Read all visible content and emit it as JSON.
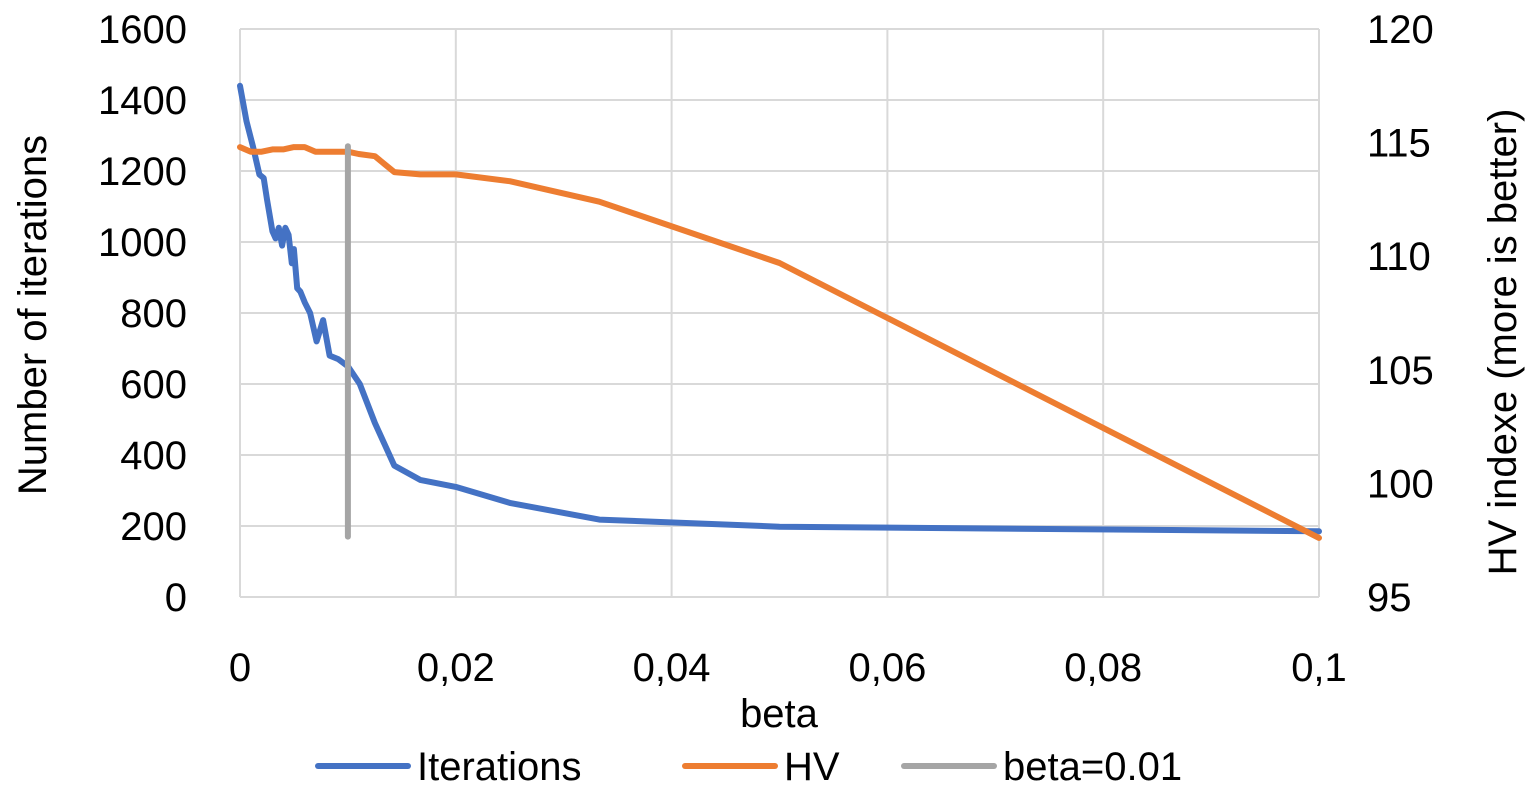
{
  "chart_data": {
    "type": "line",
    "xlabel": "beta",
    "ylabel_left": "Number of iterations",
    "ylabel_right": "HV indexe (more is better)",
    "x_range": [
      0,
      0.1
    ],
    "y_left_range": [
      0,
      1600
    ],
    "y_right_range": [
      95,
      120
    ],
    "grid": true,
    "legend_position": "bottom",
    "x_ticks": [
      {
        "v": 0,
        "label": "0"
      },
      {
        "v": 0.02,
        "label": "0,02"
      },
      {
        "v": 0.04,
        "label": "0,04"
      },
      {
        "v": 0.06,
        "label": "0,06"
      },
      {
        "v": 0.08,
        "label": "0,08"
      },
      {
        "v": 0.1,
        "label": "0,1"
      }
    ],
    "y_left_ticks": [
      {
        "v": 0,
        "label": "0"
      },
      {
        "v": 200,
        "label": "200"
      },
      {
        "v": 400,
        "label": "400"
      },
      {
        "v": 600,
        "label": "600"
      },
      {
        "v": 800,
        "label": "800"
      },
      {
        "v": 1000,
        "label": "1000"
      },
      {
        "v": 1200,
        "label": "1200"
      },
      {
        "v": 1400,
        "label": "1400"
      },
      {
        "v": 1600,
        "label": "1600"
      }
    ],
    "y_right_ticks": [
      {
        "v": 95,
        "label": "95"
      },
      {
        "v": 100,
        "label": "100"
      },
      {
        "v": 105,
        "label": "105"
      },
      {
        "v": 110,
        "label": "110"
      },
      {
        "v": 115,
        "label": "115"
      },
      {
        "v": 120,
        "label": "120"
      }
    ],
    "series": [
      {
        "name": "Iterations",
        "axis": "left",
        "color": "#4472C4",
        "x": [
          0,
          0.0006,
          0.0012,
          0.0018,
          0.0022,
          0.0025,
          0.003,
          0.0033,
          0.0036,
          0.0039,
          0.0042,
          0.0045,
          0.0048,
          0.005,
          0.0053,
          0.0056,
          0.006,
          0.0065,
          0.0071,
          0.0077,
          0.0083,
          0.0091,
          0.01,
          0.0111,
          0.0125,
          0.0143,
          0.0167,
          0.02,
          0.025,
          0.0333,
          0.05,
          0.1
        ],
        "y": [
          1440,
          1340,
          1270,
          1190,
          1180,
          1120,
          1030,
          1010,
          1040,
          990,
          1040,
          1020,
          940,
          980,
          870,
          860,
          830,
          800,
          720,
          780,
          680,
          670,
          650,
          600,
          490,
          370,
          330,
          310,
          265,
          218,
          198,
          185
        ]
      },
      {
        "name": "HV",
        "axis": "right",
        "color": "#ED7D31",
        "x": [
          0,
          0.001,
          0.002,
          0.003,
          0.004,
          0.005,
          0.006,
          0.007,
          0.008,
          0.009,
          0.01,
          0.011,
          0.0125,
          0.0143,
          0.0167,
          0.02,
          0.025,
          0.0333,
          0.05,
          0.1
        ],
        "y": [
          114.8,
          114.6,
          114.6,
          114.7,
          114.7,
          114.8,
          114.8,
          114.6,
          114.6,
          114.6,
          114.6,
          114.5,
          114.4,
          113.7,
          113.6,
          113.6,
          113.3,
          112.4,
          109.7,
          97.6
        ]
      },
      {
        "name": "beta=0.01",
        "axis": "left",
        "color": "#A5A5A5",
        "x": [
          0.01,
          0.01
        ],
        "y": [
          1270,
          170
        ]
      }
    ]
  }
}
